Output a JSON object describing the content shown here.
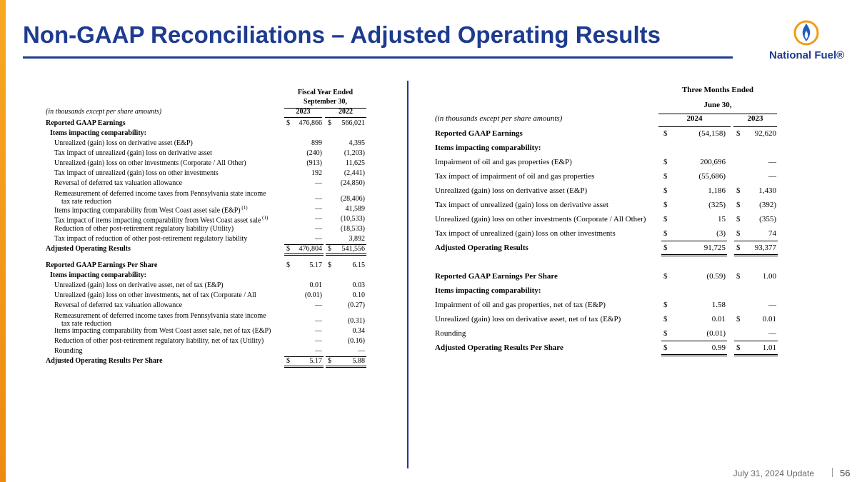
{
  "header": {
    "title": "Non-GAAP Reconciliations – Adjusted Operating Results"
  },
  "brand": {
    "name": "National Fuel®"
  },
  "footer": {
    "date": "July 31, 2024 Update",
    "page": "56"
  },
  "left": {
    "period": "Fiscal Year Ended",
    "date": "September 30,",
    "note": "(in thousands except per share amounts)",
    "years": [
      "2023",
      "2022"
    ],
    "sections": [
      [
        {
          "label": "Reported GAAP Earnings",
          "bold": true,
          "v": [
            "$",
            "476,866",
            "$",
            "566,021"
          ]
        },
        {
          "label": "Items impacting comparability:",
          "bold": true,
          "indent": 1
        },
        {
          "label": "Unrealized (gain) loss on derivative asset (E&P)",
          "indent": 2,
          "v": [
            null,
            "899",
            null,
            "4,395"
          ]
        },
        {
          "label": "Tax impact of unrealized (gain) loss on derivative asset",
          "indent": 2,
          "v": [
            null,
            "(240)",
            null,
            "(1,203)"
          ]
        },
        {
          "label": "Unrealized (gain) loss on other investments (Corporate / All Other)",
          "indent": 2,
          "v": [
            null,
            "(913)",
            null,
            "11,625"
          ]
        },
        {
          "label": "Tax impact of unrealized (gain) loss on other investments",
          "indent": 2,
          "v": [
            null,
            "192",
            null,
            "(2,441)"
          ]
        },
        {
          "label": "Reversal of deferred tax valuation allowance",
          "indent": 2,
          "v": [
            null,
            "—",
            null,
            "(24,850)"
          ]
        },
        {
          "label": "Remeasurement of deferred income taxes from Pennsylvania state income\n    tax rate reduction",
          "indent": 2,
          "v": [
            null,
            "—",
            null,
            "(28,406)"
          ]
        },
        {
          "label": "Items impacting comparability from West Coast asset sale (E&P)",
          "note": "(1)",
          "indent": 2,
          "v": [
            null,
            "—",
            null,
            "41,589"
          ]
        },
        {
          "label": "Tax impact of items impacting comparability from West Coast asset sale",
          "note": "(1)",
          "indent": 2,
          "v": [
            null,
            "—",
            null,
            "(10,533)"
          ]
        },
        {
          "label": "Reduction of other post-retirement regulatory liability (Utility)",
          "indent": 2,
          "v": [
            null,
            "—",
            null,
            "(18,533)"
          ]
        },
        {
          "label": "Tax impact of reduction of other post-retirement regulatory liability",
          "indent": 2,
          "v": [
            null,
            "—",
            null,
            "3,892"
          ]
        },
        {
          "label": "Adjusted Operating Results",
          "bold": true,
          "total": true,
          "v": [
            "$",
            "476,804",
            "$",
            "541,556"
          ]
        }
      ],
      [
        {
          "label": "Reported GAAP Earnings Per Share",
          "bold": true,
          "v": [
            "$",
            "5.17",
            "$",
            "6.15"
          ]
        },
        {
          "label": "Items impacting comparability:",
          "bold": true,
          "indent": 1
        },
        {
          "label": "Unrealized (gain) loss on derivative asset, net of tax (E&P)",
          "indent": 2,
          "v": [
            null,
            "0.01",
            null,
            "0.03"
          ]
        },
        {
          "label": "Unrealized (gain) loss on other investments, net of tax (Corporate / All",
          "indent": 2,
          "v": [
            null,
            "(0.01)",
            null,
            "0.10"
          ]
        },
        {
          "label": "Reversal of deferred tax valuation allowance",
          "indent": 2,
          "v": [
            null,
            "—",
            null,
            "(0.27)"
          ]
        },
        {
          "label": "Remeasurement of deferred income taxes from Pennsylvania state income\n    tax rate reduction",
          "indent": 2,
          "v": [
            null,
            "—",
            null,
            "(0.31)"
          ]
        },
        {
          "label": "Items impacting comparability from West Coast asset sale, net of tax (E&P)",
          "indent": 2,
          "v": [
            null,
            "—",
            null,
            "0.34"
          ]
        },
        {
          "label": "Reduction of other post-retirement regulatory liability, net of tax (Utility)",
          "indent": 2,
          "v": [
            null,
            "—",
            null,
            "(0.16)"
          ]
        },
        {
          "label": "Rounding",
          "indent": 2,
          "v": [
            null,
            "—",
            null,
            "—"
          ]
        },
        {
          "label": "Adjusted Operating Results Per Share",
          "bold": true,
          "total": true,
          "v": [
            "$",
            "5.17",
            "$",
            "5.88"
          ]
        }
      ]
    ]
  },
  "right": {
    "period": "Three Months Ended",
    "date": "June 30,",
    "note": "(in thousands except per share amounts)",
    "years": [
      "2024",
      "2023"
    ],
    "sections": [
      [
        {
          "label": "Reported GAAP Earnings",
          "bold": true,
          "v": [
            "$",
            "(54,158)",
            "$",
            "92,620"
          ]
        },
        {
          "label": "Items impacting comparability:",
          "bold": true
        },
        {
          "label": "Impairment of oil and gas properties (E&P)",
          "v": [
            "$",
            "200,696",
            null,
            "—"
          ]
        },
        {
          "label": "Tax impact of impairment of oil and gas properties",
          "v": [
            "$",
            "(55,686)",
            null,
            "—"
          ]
        },
        {
          "label": "Unrealized (gain) loss on derivative asset (E&P)",
          "v": [
            "$",
            "1,186",
            "$",
            "1,430"
          ]
        },
        {
          "label": "Tax impact of unrealized (gain) loss on derivative asset",
          "v": [
            "$",
            "(325)",
            "$",
            "(392)"
          ]
        },
        {
          "label": "Unrealized (gain) loss on other investments (Corporate / All Other)",
          "v": [
            "$",
            "15",
            "$",
            "(355)"
          ]
        },
        {
          "label": "Tax impact of unrealized (gain) loss on other investments",
          "v": [
            "$",
            "(3)",
            "$",
            "74"
          ]
        },
        {
          "label": "Adjusted Operating Results",
          "bold": true,
          "total": true,
          "v": [
            "$",
            "91,725",
            "$",
            "93,377"
          ]
        }
      ],
      [
        {
          "label": "Reported GAAP Earnings Per Share",
          "bold": true,
          "v": [
            "$",
            "(0.59)",
            "$",
            "1.00"
          ]
        },
        {
          "label": "Items impacting comparability:",
          "bold": true
        },
        {
          "label": "Impairment of oil and gas properties, net of tax (E&P)",
          "v": [
            "$",
            "1.58",
            null,
            "—"
          ]
        },
        {
          "label": "Unrealized (gain) loss on derivative asset, net of tax (E&P)",
          "v": [
            "$",
            "0.01",
            "$",
            "0.01"
          ]
        },
        {
          "label": "Rounding",
          "v": [
            "$",
            "(0.01)",
            null,
            "—"
          ]
        },
        {
          "label": "Adjusted Operating Results Per Share",
          "bold": true,
          "total": true,
          "v": [
            "$",
            "0.99",
            "$",
            "1.01"
          ]
        }
      ]
    ]
  }
}
